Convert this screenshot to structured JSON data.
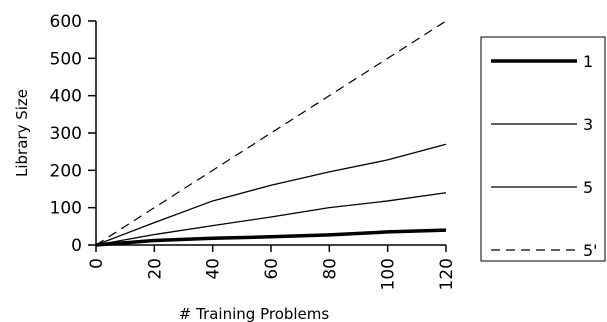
{
  "chart_data": {
    "type": "line",
    "xlabel": "# Training Problems",
    "ylabel": "Library Size",
    "xlim": [
      0,
      120
    ],
    "ylim": [
      0,
      600
    ],
    "xticks": [
      0,
      20,
      40,
      60,
      80,
      100,
      120
    ],
    "yticks": [
      0,
      100,
      200,
      300,
      400,
      500,
      600
    ],
    "grid": false,
    "legend_position": "right",
    "series": [
      {
        "name": "1",
        "style": "thick-solid",
        "color": "#000000",
        "x": [
          0,
          20,
          40,
          60,
          80,
          100,
          120
        ],
        "y": [
          0,
          12,
          18,
          22,
          27,
          35,
          40
        ]
      },
      {
        "name": "3",
        "style": "solid",
        "color": "#000000",
        "x": [
          0,
          20,
          40,
          60,
          80,
          100,
          120
        ],
        "y": [
          0,
          28,
          52,
          75,
          100,
          118,
          140
        ]
      },
      {
        "name": "5",
        "style": "solid",
        "color": "#000000",
        "x": [
          0,
          20,
          40,
          60,
          80,
          100,
          120
        ],
        "y": [
          0,
          60,
          118,
          160,
          196,
          228,
          270
        ]
      },
      {
        "name": "5'",
        "style": "dashed",
        "color": "#000000",
        "x": [
          0,
          20,
          40,
          60,
          80,
          100,
          120
        ],
        "y": [
          0,
          100,
          200,
          300,
          400,
          500,
          600
        ]
      }
    ]
  }
}
